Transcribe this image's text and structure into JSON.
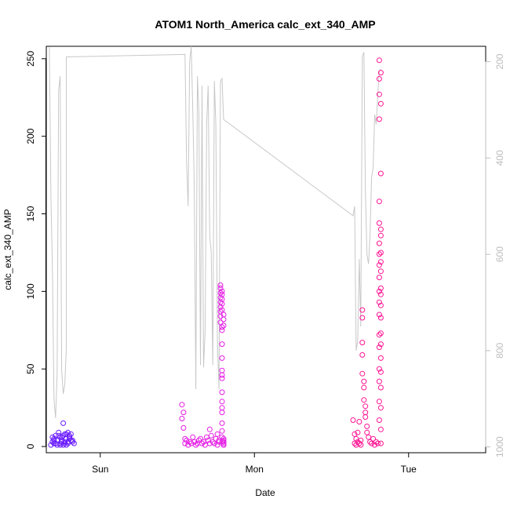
{
  "chart_data": {
    "type": "scatter",
    "title": "ATOM1 North_America calc_ext_340_AMP",
    "xlabel": "Date",
    "ylabel": "calc_ext_340_AMP",
    "x_ticks": [
      "Sun",
      "Mon",
      "Tue"
    ],
    "y_ticks": [
      "0",
      "50",
      "100",
      "150",
      "200",
      "250"
    ],
    "y2_ticks": [
      "200",
      "400",
      "600",
      "800",
      "1000"
    ],
    "xlim": [
      -0.35,
      2.5
    ],
    "ylim": [
      -4,
      258
    ],
    "y2lim": [
      1012,
      168
    ],
    "grid": false,
    "legend": "none",
    "colors": {
      "early_points": "#6a1bff",
      "mid_points": "#e41ce4",
      "late_points": "#ff1493",
      "overlay_line": "#c8c8c8"
    },
    "series": [
      {
        "group": "Sat",
        "kind": "points",
        "color": "#6a1bff",
        "x": [
          -0.32,
          -0.31,
          -0.3,
          -0.29,
          -0.28,
          -0.27,
          -0.26,
          -0.25,
          -0.24,
          -0.23,
          -0.22,
          -0.21,
          -0.2,
          -0.19,
          -0.18,
          -0.17,
          -0.27,
          -0.26,
          -0.25,
          -0.24,
          -0.23,
          -0.22,
          -0.21,
          -0.2,
          -0.31,
          -0.3,
          -0.29,
          -0.28,
          -0.19,
          -0.18,
          -0.24,
          -0.23,
          -0.26,
          -0.25,
          -0.22,
          -0.21,
          -0.3,
          -0.2
        ],
        "y": [
          1,
          3,
          5,
          2,
          4,
          7,
          6,
          3,
          1,
          8,
          5,
          2,
          6,
          4,
          3,
          2,
          9,
          1,
          4,
          7,
          2,
          8,
          3,
          5,
          6,
          2,
          7,
          1,
          8,
          4,
          15,
          3,
          2,
          6,
          1,
          9,
          4,
          7
        ]
      },
      {
        "group": "Mon-Tue",
        "kind": "points",
        "color": "#e41ce4",
        "x": [
          0.53,
          0.53,
          0.54,
          0.54,
          0.55,
          0.55,
          0.56,
          0.57,
          0.58,
          0.59,
          0.6,
          0.61,
          0.62,
          0.63,
          0.64,
          0.65,
          0.66,
          0.67,
          0.68,
          0.69,
          0.7,
          0.71,
          0.71,
          0.72,
          0.73,
          0.74,
          0.75,
          0.76,
          0.76,
          0.77,
          0.77,
          0.78,
          0.78,
          0.78,
          0.78,
          0.78,
          0.78,
          0.78,
          0.78,
          0.78,
          0.79,
          0.79,
          0.79,
          0.79,
          0.79,
          0.79,
          0.79,
          0.79,
          0.79,
          0.79,
          0.79,
          0.79,
          0.79,
          0.79,
          0.79,
          0.79,
          0.79,
          0.79,
          0.79,
          0.79,
          0.8,
          0.8,
          0.8,
          0.8,
          0.8,
          0.8,
          0.8,
          0.8,
          0.8
        ],
        "y": [
          27,
          18,
          12,
          22,
          5,
          2,
          4,
          1,
          3,
          2,
          6,
          3,
          1,
          2,
          4,
          5,
          2,
          3,
          1,
          6,
          4,
          2,
          11,
          7,
          3,
          2,
          5,
          1,
          8,
          3,
          4,
          104,
          102,
          99,
          96,
          93,
          90,
          87,
          84,
          80,
          77,
          75,
          66,
          57,
          49,
          46,
          44,
          35,
          29,
          25,
          22,
          15,
          10,
          6,
          3,
          100,
          98,
          95,
          92,
          88,
          85,
          82,
          78,
          1,
          2,
          5,
          3,
          1,
          4
        ]
      },
      {
        "group": "Tue-late",
        "kind": "points",
        "color": "#ff1493",
        "x": [
          1.64,
          1.65,
          1.65,
          1.66,
          1.66,
          1.67,
          1.67,
          1.68,
          1.68,
          1.69,
          1.69,
          1.7,
          1.7,
          1.7,
          1.7,
          1.7,
          1.71,
          1.71,
          1.71,
          1.72,
          1.72,
          1.72,
          1.73,
          1.73,
          1.74,
          1.75,
          1.76,
          1.77,
          1.78,
          1.79,
          1.8,
          1.81,
          1.81,
          1.81,
          1.81,
          1.81,
          1.81,
          1.81,
          1.81,
          1.81,
          1.81,
          1.81,
          1.81,
          1.81,
          1.81,
          1.81,
          1.81,
          1.81,
          1.81,
          1.81,
          1.82,
          1.82,
          1.82,
          1.82,
          1.82,
          1.82,
          1.82,
          1.82,
          1.82,
          1.82,
          1.82,
          1.82,
          1.82,
          1.82,
          1.82,
          1.82,
          1.82,
          1.82,
          1.82,
          1.82
        ],
        "y": [
          17,
          8,
          2,
          5,
          1,
          3,
          9,
          2,
          16,
          1,
          4,
          88,
          83,
          67,
          59,
          47,
          42,
          38,
          30,
          26,
          22,
          19,
          13,
          9,
          6,
          3,
          2,
          5,
          1,
          3,
          2,
          249,
          237,
          227,
          211,
          158,
          144,
          131,
          124,
          117,
          109,
          100,
          93,
          85,
          72,
          64,
          50,
          42,
          29,
          17,
          241,
          221,
          176,
          140,
          136,
          125,
          119,
          113,
          102,
          98,
          91,
          83,
          73,
          66,
          57,
          48,
          38,
          25,
          11,
          2
        ]
      },
      {
        "group": "overlay",
        "kind": "line",
        "axis": "right",
        "color": "#c8c8c8",
        "x": [
          -0.33,
          -0.32,
          -0.31,
          -0.3,
          -0.29,
          -0.28,
          -0.27,
          -0.26,
          -0.25,
          -0.24,
          -0.23,
          -0.22,
          -0.22,
          0.55,
          0.56,
          0.57,
          0.58,
          0.59,
          0.6,
          0.61,
          0.62,
          0.63,
          0.64,
          0.65,
          0.66,
          0.67,
          0.68,
          0.69,
          0.7,
          0.71,
          0.72,
          0.73,
          0.74,
          0.75,
          0.76,
          0.77,
          0.78,
          0.79,
          0.8,
          1.64,
          1.65,
          1.66,
          1.67,
          1.68,
          1.69,
          1.7,
          1.71,
          1.72,
          1.73,
          1.74,
          1.75,
          1.76,
          1.77,
          1.78,
          1.79,
          1.8,
          1.81,
          1.82
        ],
        "y": [
          170,
          480,
          640,
          900,
          940,
          850,
          260,
          230,
          840,
          890,
          870,
          795,
          190,
          185,
          410,
          500,
          200,
          160,
          300,
          460,
          880,
          230,
          305,
          830,
          250,
          835,
          760,
          330,
          250,
          560,
          595,
          830,
          240,
          330,
          780,
          880,
          240,
          235,
          320,
          520,
          500,
          800,
          780,
          610,
          750,
          190,
          180,
          470,
          600,
          620,
          560,
          440,
          420,
          310,
          330,
          270,
          220,
          215
        ]
      }
    ]
  }
}
